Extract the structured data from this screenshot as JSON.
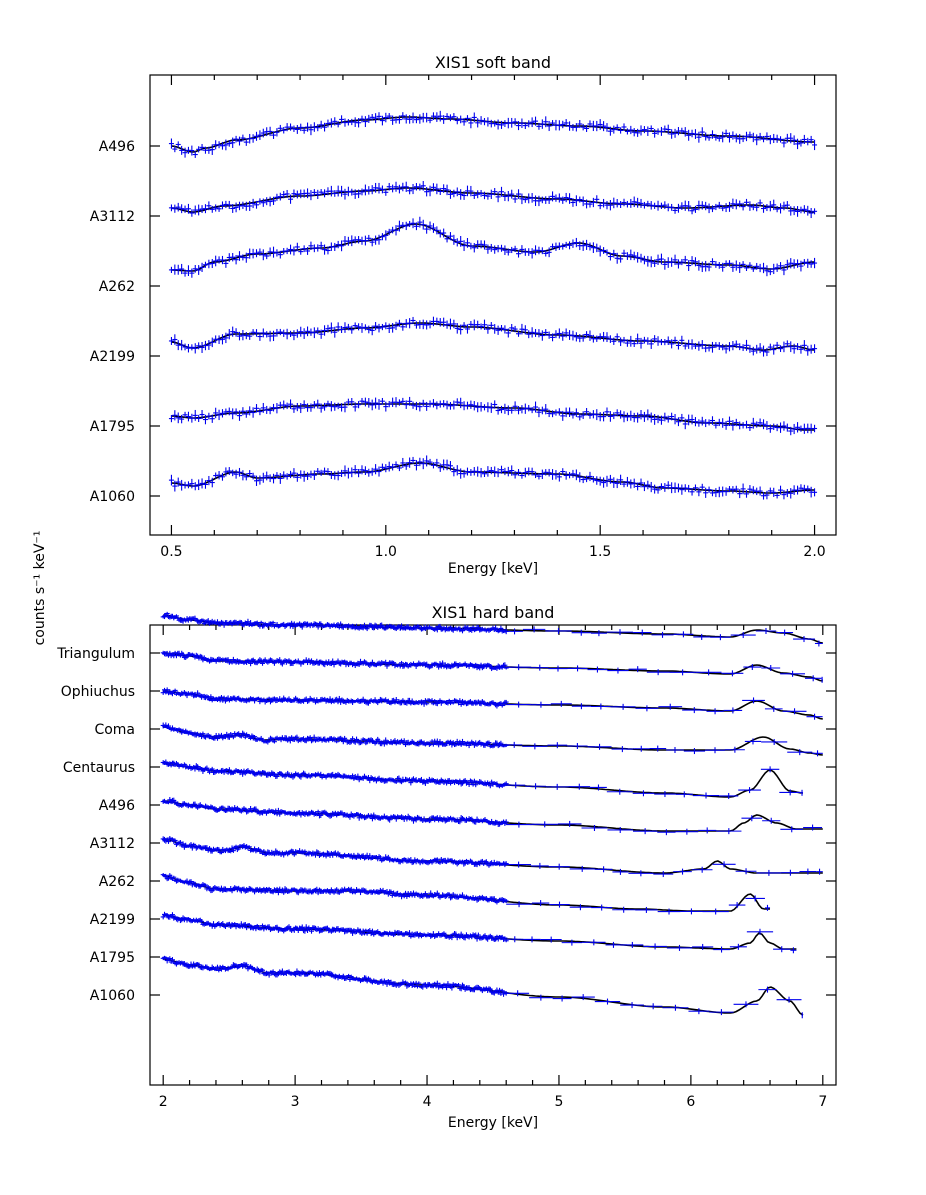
{
  "figure": {
    "ylabel": "counts s⁻¹ keV⁻¹",
    "data_color": "#0000ee",
    "model_color": "#000000"
  },
  "chart_data": [
    {
      "type": "line",
      "title": "XIS1 soft band",
      "xlabel": "Energy [keV]",
      "xlim": [
        0.45,
        2.05
      ],
      "xticks": [
        0.5,
        1.0,
        1.5,
        2.0
      ],
      "xtick_labels": [
        "0.5",
        "1.0",
        "1.5",
        "2.0"
      ],
      "y_offset_step": 70,
      "series": [
        {
          "name": "A496",
          "x_range": [
            0.5,
            2.0
          ],
          "profile": [
            [
              0.5,
              0.0
            ],
            [
              0.55,
              -6
            ],
            [
              0.58,
              -2
            ],
            [
              0.65,
              6
            ],
            [
              0.8,
              18
            ],
            [
              0.95,
              26
            ],
            [
              1.05,
              29
            ],
            [
              1.15,
              27
            ],
            [
              1.3,
              23
            ],
            [
              1.45,
              20
            ],
            [
              1.6,
              15
            ],
            [
              1.8,
              10
            ],
            [
              2.0,
              4
            ]
          ]
        },
        {
          "name": "A3112",
          "x_range": [
            0.5,
            2.0
          ],
          "profile": [
            [
              0.5,
              8
            ],
            [
              0.55,
              4
            ],
            [
              0.62,
              10
            ],
            [
              0.8,
              20
            ],
            [
              0.95,
              25
            ],
            [
              1.05,
              28
            ],
            [
              1.2,
              23
            ],
            [
              1.4,
              17
            ],
            [
              1.55,
              12
            ],
            [
              1.7,
              8
            ],
            [
              1.85,
              11
            ],
            [
              1.93,
              8
            ],
            [
              2.0,
              4
            ]
          ]
        },
        {
          "name": "A262",
          "x_range": [
            0.5,
            2.0
          ],
          "profile": [
            [
              0.5,
              16
            ],
            [
              0.55,
              15
            ],
            [
              0.6,
              24
            ],
            [
              0.7,
              32
            ],
            [
              0.85,
              38
            ],
            [
              0.95,
              45
            ],
            [
              1.07,
              62
            ],
            [
              1.2,
              40
            ],
            [
              1.35,
              34
            ],
            [
              1.45,
              43
            ],
            [
              1.55,
              30
            ],
            [
              1.65,
              24
            ],
            [
              1.8,
              21
            ],
            [
              1.9,
              17
            ],
            [
              2.0,
              24
            ]
          ]
        },
        {
          "name": "A2199",
          "x_range": [
            0.5,
            2.0
          ],
          "profile": [
            [
              0.5,
              14
            ],
            [
              0.55,
              8
            ],
            [
              0.65,
              22
            ],
            [
              0.8,
              23
            ],
            [
              0.95,
              28
            ],
            [
              1.08,
              33
            ],
            [
              1.2,
              29
            ],
            [
              1.4,
              21
            ],
            [
              1.6,
              15
            ],
            [
              1.8,
              10
            ],
            [
              1.88,
              6
            ],
            [
              1.95,
              10
            ],
            [
              2.0,
              6
            ]
          ]
        },
        {
          "name": "A1795",
          "x_range": [
            0.5,
            2.0
          ],
          "profile": [
            [
              0.5,
              10
            ],
            [
              0.55,
              8
            ],
            [
              0.65,
              13
            ],
            [
              0.8,
              20
            ],
            [
              0.95,
              22
            ],
            [
              1.1,
              22
            ],
            [
              1.3,
              18
            ],
            [
              1.45,
              12
            ],
            [
              1.6,
              10
            ],
            [
              1.75,
              3
            ],
            [
              1.9,
              0
            ],
            [
              1.98,
              -4
            ]
          ]
        },
        {
          "name": "A1060",
          "x_range": [
            0.5,
            2.0
          ],
          "profile": [
            [
              0.5,
              13
            ],
            [
              0.55,
              10
            ],
            [
              0.65,
              24
            ],
            [
              0.7,
              18
            ],
            [
              0.85,
              22
            ],
            [
              0.95,
              24
            ],
            [
              1.08,
              33
            ],
            [
              1.2,
              24
            ],
            [
              1.4,
              22
            ],
            [
              1.55,
              14
            ],
            [
              1.65,
              8
            ],
            [
              1.8,
              5
            ],
            [
              1.9,
              3
            ],
            [
              2.0,
              6
            ]
          ]
        }
      ]
    },
    {
      "type": "line",
      "title": "XIS1 hard band",
      "xlabel": "Energy [keV]",
      "xlim": [
        1.9,
        7.1
      ],
      "xticks": [
        2,
        3,
        4,
        5,
        6,
        7
      ],
      "xtick_labels": [
        "2",
        "3",
        "4",
        "5",
        "6",
        "7"
      ],
      "y_offset_step": 38,
      "series": [
        {
          "name": "Triangulum",
          "x_range": [
            2.0,
            7.0
          ],
          "profile": [
            [
              2.0,
              38
            ],
            [
              2.2,
              33
            ],
            [
              2.4,
              30
            ],
            [
              3.0,
              28
            ],
            [
              4.0,
              25
            ],
            [
              5.0,
              22
            ],
            [
              5.8,
              19
            ],
            [
              6.3,
              16
            ],
            [
              6.5,
              23
            ],
            [
              6.7,
              20
            ],
            [
              6.9,
              14
            ],
            [
              7.0,
              10
            ]
          ]
        },
        {
          "name": "Ophiuchus",
          "x_range": [
            2.0,
            7.0
          ],
          "profile": [
            [
              2.0,
              38
            ],
            [
              2.2,
              35
            ],
            [
              2.4,
              30
            ],
            [
              3.0,
              29
            ],
            [
              4.0,
              26
            ],
            [
              5.0,
              23
            ],
            [
              5.8,
              20
            ],
            [
              6.3,
              17
            ],
            [
              6.5,
              26
            ],
            [
              6.7,
              18
            ],
            [
              6.9,
              14
            ],
            [
              7.0,
              10
            ]
          ]
        },
        {
          "name": "Coma",
          "x_range": [
            2.0,
            7.0
          ],
          "profile": [
            [
              2.0,
              38
            ],
            [
              2.2,
              35
            ],
            [
              2.4,
              30
            ],
            [
              3.0,
              29
            ],
            [
              4.0,
              27
            ],
            [
              5.0,
              24
            ],
            [
              5.8,
              21
            ],
            [
              6.3,
              18
            ],
            [
              6.5,
              28
            ],
            [
              6.7,
              18
            ],
            [
              6.9,
              14
            ],
            [
              7.0,
              10
            ]
          ]
        },
        {
          "name": "Centaurus",
          "x_range": [
            2.0,
            7.0
          ],
          "profile": [
            [
              2.0,
              40
            ],
            [
              2.2,
              34
            ],
            [
              2.4,
              30
            ],
            [
              2.6,
              32
            ],
            [
              2.75,
              27
            ],
            [
              3.0,
              28
            ],
            [
              4.0,
              24
            ],
            [
              5.0,
              21
            ],
            [
              5.8,
              17
            ],
            [
              6.3,
              17
            ],
            [
              6.55,
              30
            ],
            [
              6.75,
              18
            ],
            [
              6.9,
              14
            ],
            [
              7.0,
              12
            ]
          ]
        },
        {
          "name": "A496",
          "x_range": [
            2.0,
            6.85
          ],
          "profile": [
            [
              2.0,
              42
            ],
            [
              2.2,
              38
            ],
            [
              2.4,
              34
            ],
            [
              3.0,
              30
            ],
            [
              4.0,
              24
            ],
            [
              5.0,
              18
            ],
            [
              5.8,
              12
            ],
            [
              6.3,
              8
            ],
            [
              6.45,
              15
            ],
            [
              6.6,
              35
            ],
            [
              6.75,
              14
            ],
            [
              6.85,
              12
            ]
          ]
        },
        {
          "name": "A3112",
          "x_range": [
            2.0,
            7.0
          ],
          "profile": [
            [
              2.0,
              42
            ],
            [
              2.2,
              38
            ],
            [
              2.4,
              34
            ],
            [
              3.0,
              30
            ],
            [
              4.0,
              24
            ],
            [
              5.0,
              18
            ],
            [
              5.8,
              12
            ],
            [
              6.3,
              12
            ],
            [
              6.4,
              20
            ],
            [
              6.5,
              28
            ],
            [
              6.65,
              20
            ],
            [
              6.8,
              14
            ],
            [
              7.0,
              14
            ]
          ]
        },
        {
          "name": "A262",
          "x_range": [
            2.0,
            7.0
          ],
          "profile": [
            [
              2.0,
              42
            ],
            [
              2.2,
              35
            ],
            [
              2.45,
              30
            ],
            [
              2.6,
              34
            ],
            [
              2.8,
              28
            ],
            [
              3.0,
              28
            ],
            [
              4.0,
              20
            ],
            [
              5.0,
              14
            ],
            [
              5.8,
              8
            ],
            [
              6.1,
              12
            ],
            [
              6.2,
              20
            ],
            [
              6.3,
              12
            ],
            [
              6.5,
              8
            ],
            [
              7.0,
              8
            ]
          ]
        },
        {
          "name": "A2199",
          "x_range": [
            2.0,
            6.6
          ],
          "profile": [
            [
              2.0,
              43
            ],
            [
              2.2,
              36
            ],
            [
              2.4,
              30
            ],
            [
              3.0,
              28
            ],
            [
              3.5,
              28
            ],
            [
              3.9,
              24
            ],
            [
              4.0,
              24
            ],
            [
              5.0,
              14
            ],
            [
              5.6,
              10
            ],
            [
              6.0,
              8
            ],
            [
              6.3,
              8
            ],
            [
              6.45,
              25
            ],
            [
              6.55,
              10
            ],
            [
              6.6,
              10
            ]
          ]
        },
        {
          "name": "A1795",
          "x_range": [
            2.0,
            6.8
          ],
          "profile": [
            [
              2.0,
              42
            ],
            [
              2.2,
              37
            ],
            [
              2.4,
              32
            ],
            [
              3.0,
              28
            ],
            [
              4.0,
              22
            ],
            [
              5.0,
              16
            ],
            [
              5.8,
              10
            ],
            [
              6.3,
              8
            ],
            [
              6.45,
              14
            ],
            [
              6.52,
              24
            ],
            [
              6.6,
              14
            ],
            [
              6.7,
              8
            ],
            [
              6.8,
              8
            ]
          ]
        },
        {
          "name": "A1060",
          "x_range": [
            2.0,
            6.85
          ],
          "profile": [
            [
              2.0,
              36
            ],
            [
              2.2,
              30
            ],
            [
              2.4,
              26
            ],
            [
              2.6,
              29
            ],
            [
              2.8,
              22
            ],
            [
              3.0,
              22
            ],
            [
              4.0,
              10
            ],
            [
              5.0,
              -2
            ],
            [
              5.8,
              -12
            ],
            [
              6.3,
              -18
            ],
            [
              6.5,
              -6
            ],
            [
              6.6,
              8
            ],
            [
              6.75,
              -6
            ],
            [
              6.85,
              -20
            ]
          ]
        }
      ]
    }
  ]
}
